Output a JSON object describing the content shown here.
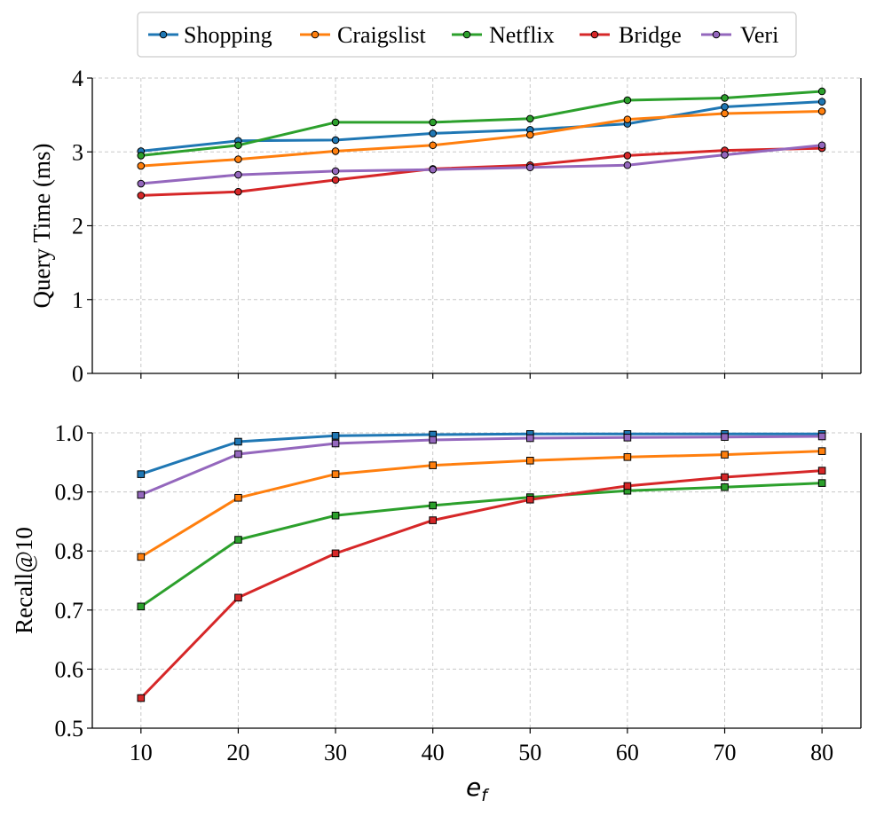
{
  "chart_data": [
    {
      "type": "line",
      "panel": "top",
      "ylabel": "Query Time (ms)",
      "ylim": [
        0,
        4
      ],
      "yticks": [
        "0",
        "1",
        "2",
        "3",
        "4"
      ],
      "ytick_values": [
        0,
        1,
        2,
        3,
        4
      ],
      "grid": true,
      "marker": "circle",
      "x": [
        10,
        20,
        30,
        40,
        50,
        60,
        70,
        80
      ],
      "series": [
        {
          "name": "Shopping",
          "color": "#1f77b4",
          "values": [
            3.01,
            3.15,
            3.16,
            3.25,
            3.3,
            3.38,
            3.61,
            3.68
          ]
        },
        {
          "name": "Craigslist",
          "color": "#ff7f0e",
          "values": [
            2.81,
            2.9,
            3.01,
            3.09,
            3.23,
            3.44,
            3.52,
            3.55
          ]
        },
        {
          "name": "Netflix",
          "color": "#2ca02c",
          "values": [
            2.95,
            3.09,
            3.4,
            3.4,
            3.45,
            3.7,
            3.73,
            3.82
          ]
        },
        {
          "name": "Bridge",
          "color": "#d62728",
          "values": [
            2.41,
            2.46,
            2.62,
            2.77,
            2.82,
            2.95,
            3.02,
            3.05
          ]
        },
        {
          "name": "Veri",
          "color": "#9467bd",
          "values": [
            2.57,
            2.69,
            2.74,
            2.76,
            2.79,
            2.82,
            2.96,
            3.09
          ]
        }
      ]
    },
    {
      "type": "line",
      "panel": "bottom",
      "ylabel": "Recall@10",
      "ylim": [
        0.5,
        1.0
      ],
      "yticks": [
        "0.5",
        "0.6",
        "0.7",
        "0.8",
        "0.9",
        "1.0"
      ],
      "ytick_values": [
        0.5,
        0.6,
        0.7,
        0.8,
        0.9,
        1.0
      ],
      "grid": true,
      "marker": "square",
      "x": [
        10,
        20,
        30,
        40,
        50,
        60,
        70,
        80
      ],
      "xticks": [
        "10",
        "20",
        "30",
        "40",
        "50",
        "60",
        "70",
        "80"
      ],
      "xlabel_base": "e",
      "xlabel_sub": "f",
      "series": [
        {
          "name": "Shopping",
          "color": "#1f77b4",
          "values": [
            0.93,
            0.985,
            0.995,
            0.997,
            0.998,
            0.998,
            0.998,
            0.998
          ]
        },
        {
          "name": "Craigslist",
          "color": "#ff7f0e",
          "values": [
            0.79,
            0.89,
            0.93,
            0.945,
            0.953,
            0.959,
            0.963,
            0.969
          ]
        },
        {
          "name": "Netflix",
          "color": "#2ca02c",
          "values": [
            0.706,
            0.819,
            0.86,
            0.877,
            0.891,
            0.902,
            0.908,
            0.915
          ]
        },
        {
          "name": "Bridge",
          "color": "#d62728",
          "values": [
            0.551,
            0.721,
            0.796,
            0.852,
            0.887,
            0.91,
            0.925,
            0.936
          ]
        },
        {
          "name": "Veri",
          "color": "#9467bd",
          "values": [
            0.895,
            0.964,
            0.982,
            0.988,
            0.991,
            0.992,
            0.993,
            0.994
          ]
        }
      ]
    }
  ],
  "legend": {
    "placement": "top-center",
    "entries": [
      {
        "name": "Shopping",
        "color": "#1f77b4"
      },
      {
        "name": "Craigslist",
        "color": "#ff7f0e"
      },
      {
        "name": "Netflix",
        "color": "#2ca02c"
      },
      {
        "name": "Bridge",
        "color": "#d62728"
      },
      {
        "name": "Veri",
        "color": "#9467bd"
      }
    ]
  }
}
